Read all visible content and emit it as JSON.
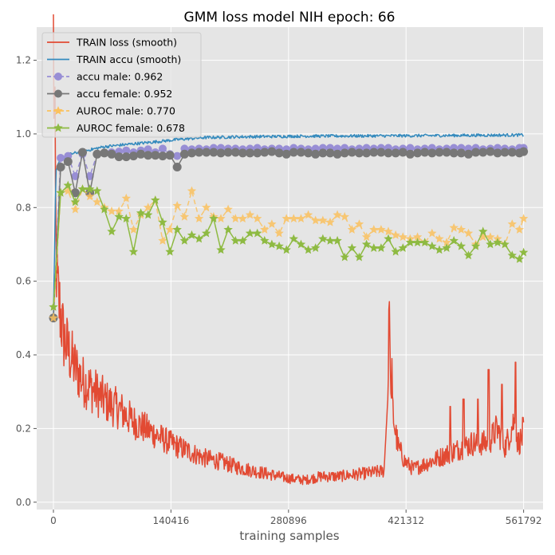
{
  "chart_data": {
    "type": "line",
    "title": "GMM loss model NIH  epoch: 66",
    "xlabel": "training samples",
    "ylabel": "",
    "xlim": [
      -20000,
      585000
    ],
    "ylim": [
      -0.02,
      1.29
    ],
    "x_ticks": [
      0,
      140416,
      280896,
      421312,
      561792
    ],
    "x_tick_labels": [
      "0",
      "140416",
      "280896",
      "421312",
      "561792"
    ],
    "y_ticks": [
      0.0,
      0.2,
      0.4,
      0.6,
      0.8,
      1.0,
      1.2
    ],
    "y_tick_labels": [
      "0.0",
      "0.2",
      "0.4",
      "0.6",
      "0.8",
      "1.0",
      "1.2"
    ],
    "grid": true,
    "legend_position": "top-left",
    "colors": {
      "train_loss": "#e24a33",
      "train_accu": "#348abd",
      "accu_male": "#988ed5",
      "accu_female": "#777777",
      "auroc_male": "#fbc15e",
      "auroc_female": "#8eba42",
      "plot_bg": "#e5e5e5",
      "grid": "#ffffff"
    },
    "train_loss_anchors": [
      [
        0,
        1.24
      ],
      [
        1500,
        1.0
      ],
      [
        3000,
        0.7
      ],
      [
        5000,
        0.57
      ],
      [
        8000,
        0.52
      ],
      [
        12000,
        0.45
      ],
      [
        18000,
        0.41
      ],
      [
        25000,
        0.37
      ],
      [
        35000,
        0.33
      ],
      [
        45000,
        0.31
      ],
      [
        55000,
        0.29
      ],
      [
        65000,
        0.27
      ],
      [
        80000,
        0.25
      ],
      [
        95000,
        0.22
      ],
      [
        110000,
        0.2
      ],
      [
        125000,
        0.18
      ],
      [
        140000,
        0.16
      ],
      [
        160000,
        0.14
      ],
      [
        180000,
        0.12
      ],
      [
        200000,
        0.11
      ],
      [
        220000,
        0.095
      ],
      [
        240000,
        0.085
      ],
      [
        260000,
        0.075
      ],
      [
        280000,
        0.065
      ],
      [
        300000,
        0.06
      ],
      [
        320000,
        0.07
      ],
      [
        340000,
        0.07
      ],
      [
        360000,
        0.075
      ],
      [
        380000,
        0.08
      ],
      [
        395000,
        0.085
      ],
      [
        400000,
        0.3
      ],
      [
        401000,
        0.6
      ],
      [
        403000,
        0.3
      ],
      [
        408000,
        0.2
      ],
      [
        412000,
        0.15
      ],
      [
        420000,
        0.11
      ],
      [
        430000,
        0.09
      ],
      [
        440000,
        0.1
      ],
      [
        460000,
        0.12
      ],
      [
        480000,
        0.14
      ],
      [
        500000,
        0.16
      ],
      [
        520000,
        0.16
      ],
      [
        530000,
        0.2
      ],
      [
        540000,
        0.15
      ],
      [
        550000,
        0.22
      ],
      [
        555000,
        0.16
      ],
      [
        562000,
        0.18
      ]
    ],
    "train_loss_spikes": [
      [
        404000,
        0.39
      ],
      [
        474000,
        0.26
      ],
      [
        490000,
        0.28
      ],
      [
        507000,
        0.28
      ],
      [
        520000,
        0.36
      ],
      [
        536000,
        0.32
      ],
      [
        552000,
        0.38
      ],
      [
        561000,
        0.23
      ]
    ],
    "train_accu_anchors": [
      [
        0,
        0.5
      ],
      [
        3000,
        0.9
      ],
      [
        8000,
        0.93
      ],
      [
        20000,
        0.945
      ],
      [
        40000,
        0.955
      ],
      [
        60000,
        0.965
      ],
      [
        90000,
        0.972
      ],
      [
        120000,
        0.978
      ],
      [
        150000,
        0.985
      ],
      [
        180000,
        0.99
      ],
      [
        220000,
        0.992
      ],
      [
        300000,
        0.994
      ],
      [
        420000,
        0.995
      ],
      [
        561792,
        0.997
      ]
    ],
    "series": [
      {
        "name": "accu male: 0.962",
        "x": [
          0,
          8700,
          17400,
          26100,
          34800,
          43500,
          52200,
          60900,
          69600,
          78300,
          87000,
          95700,
          104400,
          113100,
          121800,
          130500,
          139200,
          147900,
          156600,
          165300,
          174000,
          182700,
          191400,
          200100,
          208800,
          217500,
          226200,
          234900,
          243600,
          252300,
          261000,
          269700,
          278400,
          287100,
          295800,
          304500,
          313200,
          321900,
          330600,
          339300,
          348000,
          356700,
          365400,
          374100,
          382800,
          391500,
          400200,
          408900,
          417600,
          426300,
          435000,
          443700,
          452400,
          461100,
          469800,
          478500,
          487200,
          495900,
          504600,
          513300,
          522000,
          530700,
          539400,
          548100,
          556800,
          561792
        ],
        "y": [
          0.5,
          0.935,
          0.94,
          0.885,
          0.945,
          0.885,
          0.945,
          0.948,
          0.95,
          0.952,
          0.955,
          0.95,
          0.955,
          0.958,
          0.95,
          0.96,
          0.945,
          0.94,
          0.96,
          0.958,
          0.96,
          0.958,
          0.962,
          0.962,
          0.96,
          0.96,
          0.958,
          0.96,
          0.962,
          0.958,
          0.96,
          0.96,
          0.958,
          0.962,
          0.96,
          0.958,
          0.96,
          0.962,
          0.962,
          0.96,
          0.962,
          0.958,
          0.96,
          0.962,
          0.96,
          0.962,
          0.962,
          0.958,
          0.96,
          0.962,
          0.958,
          0.96,
          0.962,
          0.958,
          0.96,
          0.962,
          0.962,
          0.96,
          0.962,
          0.958,
          0.96,
          0.962,
          0.96,
          0.958,
          0.962,
          0.962
        ]
      },
      {
        "name": "accu female: 0.952",
        "x": [
          0,
          8700,
          17400,
          26100,
          34800,
          43500,
          52200,
          60900,
          69600,
          78300,
          87000,
          95700,
          104400,
          113100,
          121800,
          130500,
          139200,
          147900,
          156600,
          165300,
          174000,
          182700,
          191400,
          200100,
          208800,
          217500,
          226200,
          234900,
          243600,
          252300,
          261000,
          269700,
          278400,
          287100,
          295800,
          304500,
          313200,
          321900,
          330600,
          339300,
          348000,
          356700,
          365400,
          374100,
          382800,
          391500,
          400200,
          408900,
          417600,
          426300,
          435000,
          443700,
          452400,
          461100,
          469800,
          478500,
          487200,
          495900,
          504600,
          513300,
          522000,
          530700,
          539400,
          548100,
          556800,
          561792
        ],
        "y": [
          0.5,
          0.91,
          0.925,
          0.84,
          0.95,
          0.84,
          0.945,
          0.948,
          0.945,
          0.938,
          0.938,
          0.94,
          0.945,
          0.942,
          0.942,
          0.94,
          0.942,
          0.91,
          0.945,
          0.948,
          0.95,
          0.95,
          0.95,
          0.948,
          0.95,
          0.95,
          0.948,
          0.948,
          0.948,
          0.95,
          0.952,
          0.948,
          0.945,
          0.95,
          0.95,
          0.948,
          0.945,
          0.948,
          0.948,
          0.945,
          0.948,
          0.95,
          0.948,
          0.948,
          0.95,
          0.95,
          0.948,
          0.948,
          0.95,
          0.945,
          0.948,
          0.95,
          0.948,
          0.95,
          0.95,
          0.948,
          0.948,
          0.945,
          0.95,
          0.95,
          0.952,
          0.948,
          0.95,
          0.95,
          0.948,
          0.952
        ]
      },
      {
        "name": "AUROC male: 0.770",
        "x": [
          0,
          8700,
          17400,
          26100,
          34800,
          43500,
          52200,
          60900,
          69600,
          78300,
          87000,
          95700,
          104400,
          113100,
          121800,
          130500,
          139200,
          147900,
          156600,
          165300,
          174000,
          182700,
          191400,
          200100,
          208800,
          217500,
          226200,
          234900,
          243600,
          252300,
          261000,
          269700,
          278400,
          287100,
          295800,
          304500,
          313200,
          321900,
          330600,
          339300,
          348000,
          356700,
          365400,
          374100,
          382800,
          391500,
          400200,
          408900,
          417600,
          426300,
          435000,
          443700,
          452400,
          461100,
          469800,
          478500,
          487200,
          495900,
          504600,
          513300,
          522000,
          530700,
          539400,
          548100,
          556800,
          561792
        ],
        "y": [
          0.5,
          0.84,
          0.845,
          0.795,
          0.85,
          0.83,
          0.815,
          0.8,
          0.79,
          0.79,
          0.825,
          0.74,
          0.78,
          0.8,
          0.82,
          0.71,
          0.74,
          0.805,
          0.775,
          0.845,
          0.77,
          0.8,
          0.775,
          0.77,
          0.795,
          0.77,
          0.77,
          0.78,
          0.77,
          0.74,
          0.755,
          0.73,
          0.77,
          0.77,
          0.77,
          0.78,
          0.765,
          0.765,
          0.76,
          0.78,
          0.775,
          0.74,
          0.755,
          0.72,
          0.74,
          0.74,
          0.735,
          0.725,
          0.72,
          0.715,
          0.72,
          0.705,
          0.73,
          0.715,
          0.705,
          0.745,
          0.74,
          0.73,
          0.7,
          0.72,
          0.72,
          0.715,
          0.7,
          0.755,
          0.74,
          0.77
        ]
      },
      {
        "name": "AUROC female: 0.678",
        "x": [
          0,
          8700,
          17400,
          26100,
          34800,
          43500,
          52200,
          60900,
          69600,
          78300,
          87000,
          95700,
          104400,
          113100,
          121800,
          130500,
          139200,
          147900,
          156600,
          165300,
          174000,
          182700,
          191400,
          200100,
          208800,
          217500,
          226200,
          234900,
          243600,
          252300,
          261000,
          269700,
          278400,
          287100,
          295800,
          304500,
          313200,
          321900,
          330600,
          339300,
          348000,
          356700,
          365400,
          374100,
          382800,
          391500,
          400200,
          408900,
          417600,
          426300,
          435000,
          443700,
          452400,
          461100,
          469800,
          478500,
          487200,
          495900,
          504600,
          513300,
          522000,
          530700,
          539400,
          548100,
          556800,
          561792
        ],
        "y": [
          0.53,
          0.84,
          0.86,
          0.815,
          0.85,
          0.85,
          0.845,
          0.795,
          0.735,
          0.775,
          0.77,
          0.68,
          0.785,
          0.78,
          0.82,
          0.76,
          0.68,
          0.74,
          0.71,
          0.725,
          0.715,
          0.73,
          0.77,
          0.685,
          0.74,
          0.71,
          0.71,
          0.73,
          0.73,
          0.71,
          0.7,
          0.695,
          0.685,
          0.715,
          0.7,
          0.685,
          0.69,
          0.715,
          0.71,
          0.71,
          0.665,
          0.69,
          0.665,
          0.7,
          0.69,
          0.69,
          0.715,
          0.68,
          0.69,
          0.705,
          0.705,
          0.705,
          0.695,
          0.685,
          0.69,
          0.71,
          0.695,
          0.67,
          0.695,
          0.735,
          0.7,
          0.705,
          0.7,
          0.67,
          0.66,
          0.678
        ]
      }
    ],
    "legend": [
      {
        "label": "TRAIN loss (smooth)",
        "style": "line",
        "color": "#e24a33"
      },
      {
        "label": "TRAIN accu (smooth)",
        "style": "line",
        "color": "#348abd"
      },
      {
        "label": "accu male: 0.962",
        "style": "dash-circle",
        "color": "#988ed5"
      },
      {
        "label": "accu female: 0.952",
        "style": "solid-circle",
        "color": "#777777"
      },
      {
        "label": "AUROC male: 0.770",
        "style": "dash-star",
        "color": "#fbc15e"
      },
      {
        "label": "AUROC female: 0.678",
        "style": "solid-star",
        "color": "#8eba42"
      }
    ]
  }
}
